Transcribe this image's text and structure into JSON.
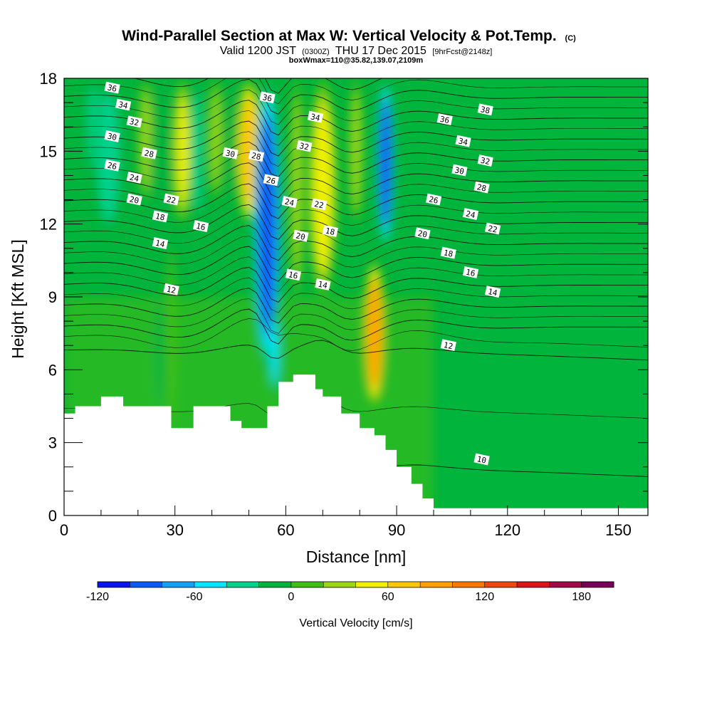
{
  "title": {
    "main": "Wind-Parallel Section at Max W: Vertical Velocity & Pot.Temp.",
    "main_suffix": "(C)",
    "valid_prefix": "Valid 1200 JST",
    "valid_z": "(0300Z)",
    "valid_date": "THU 17 Dec 2015",
    "valid_fcst": "[9hrFcst@2148z]",
    "box": "boxWmax=110@35.82,139.07,2109m"
  },
  "chart_data": {
    "type": "heatmap",
    "xlabel": "Distance [nm]",
    "ylabel": "Height [Kft MSL]",
    "xlim": [
      0,
      158
    ],
    "ylim": [
      0,
      18
    ],
    "x_ticks": [
      0,
      30,
      60,
      90,
      120,
      150
    ],
    "y_ticks": [
      0,
      3,
      6,
      9,
      12,
      15,
      18
    ],
    "colorbar": {
      "title": "Vertical Velocity [cm/s]",
      "min": -120,
      "max": 200,
      "step": 20,
      "tick_values": [
        -120,
        -60,
        0,
        60,
        120,
        180
      ],
      "tick_labels": [
        "-120",
        "-60",
        "0",
        "60",
        "120",
        "180"
      ],
      "colors": [
        "#0a14f0",
        "#0a5af5",
        "#14a0f5",
        "#00e6ff",
        "#00d28c",
        "#00b43c",
        "#41be14",
        "#9bd714",
        "#f0f000",
        "#ffc800",
        "#ffa000",
        "#ff7800",
        "#f04614",
        "#dc1414",
        "#a00a46",
        "#78005a"
      ]
    },
    "vertical_velocity_features": [
      {
        "x": 3,
        "w": 4,
        "y0": 13,
        "y1": 18,
        "value": -30
      },
      {
        "x": 8,
        "w": 3,
        "y0": 14,
        "y1": 18,
        "value": -50
      },
      {
        "x": 12,
        "w": 7,
        "y0": 11.5,
        "y1": 18,
        "value": -40
      },
      {
        "x": 22,
        "w": 3,
        "y0": 13,
        "y1": 18,
        "value": 50
      },
      {
        "x": 26,
        "w": 5,
        "y0": 11,
        "y1": 18,
        "value": -30
      },
      {
        "x": 32,
        "w": 4,
        "y0": 12,
        "y1": 18,
        "value": 60
      },
      {
        "x": 36,
        "w": 3,
        "y0": 12,
        "y1": 18,
        "value": -40
      },
      {
        "x": 41,
        "w": 3,
        "y0": 13,
        "y1": 18,
        "value": 40
      },
      {
        "x": 45,
        "w": 2,
        "y0": 13,
        "y1": 18,
        "value": -30
      },
      {
        "x": 50,
        "w": 6,
        "y0": 12,
        "y1": 18,
        "value": 80
      },
      {
        "x": 55,
        "w": 7,
        "y0": 6,
        "y1": 18,
        "value": -100
      },
      {
        "x": 57,
        "w": 2,
        "y0": 5,
        "y1": 8.5,
        "value": -60
      },
      {
        "x": 63,
        "w": 3,
        "y0": 9,
        "y1": 18,
        "value": 40
      },
      {
        "x": 70,
        "w": 7,
        "y0": 9,
        "y1": 18,
        "value": 70
      },
      {
        "x": 79,
        "w": 3,
        "y0": 12,
        "y1": 18,
        "value": 40
      },
      {
        "x": 87,
        "w": 4,
        "y0": 11,
        "y1": 18,
        "value": -100
      },
      {
        "x": 84,
        "w": 5,
        "y0": 4.5,
        "y1": 10.5,
        "value": 110
      },
      {
        "x": 29,
        "w": 2,
        "y0": 3.6,
        "y1": 11,
        "value": 30
      },
      {
        "x": 26,
        "w": 2,
        "y0": 4.5,
        "y1": 9,
        "value": -20
      }
    ],
    "potential_temperature_labels": [
      {
        "value": 36,
        "x": 13,
        "y": 17.6
      },
      {
        "value": 34,
        "x": 16,
        "y": 16.9
      },
      {
        "value": 32,
        "x": 19,
        "y": 16.2
      },
      {
        "value": 30,
        "x": 13,
        "y": 15.6
      },
      {
        "value": 28,
        "x": 23,
        "y": 14.9
      },
      {
        "value": 26,
        "x": 13,
        "y": 14.4
      },
      {
        "value": 24,
        "x": 19,
        "y": 13.9
      },
      {
        "value": 22,
        "x": 29,
        "y": 13.0
      },
      {
        "value": 20,
        "x": 19,
        "y": 13.0
      },
      {
        "value": 18,
        "x": 26,
        "y": 12.3
      },
      {
        "value": 16,
        "x": 37,
        "y": 11.9
      },
      {
        "value": 14,
        "x": 26,
        "y": 11.2
      },
      {
        "value": 12,
        "x": 29,
        "y": 9.3
      },
      {
        "value": 36,
        "x": 55,
        "y": 17.2
      },
      {
        "value": 30,
        "x": 45,
        "y": 14.9
      },
      {
        "value": 28,
        "x": 52,
        "y": 14.8
      },
      {
        "value": 26,
        "x": 56,
        "y": 13.8
      },
      {
        "value": 34,
        "x": 68,
        "y": 16.4
      },
      {
        "value": 32,
        "x": 65,
        "y": 15.2
      },
      {
        "value": 24,
        "x": 61,
        "y": 12.9
      },
      {
        "value": 22,
        "x": 69,
        "y": 12.8
      },
      {
        "value": 20,
        "x": 64,
        "y": 11.5
      },
      {
        "value": 18,
        "x": 72,
        "y": 11.7
      },
      {
        "value": 16,
        "x": 62,
        "y": 9.9
      },
      {
        "value": 14,
        "x": 70,
        "y": 9.5
      },
      {
        "value": 36,
        "x": 103,
        "y": 16.3
      },
      {
        "value": 38,
        "x": 114,
        "y": 16.7
      },
      {
        "value": 34,
        "x": 108,
        "y": 15.4
      },
      {
        "value": 32,
        "x": 114,
        "y": 14.6
      },
      {
        "value": 30,
        "x": 107,
        "y": 14.2
      },
      {
        "value": 28,
        "x": 113,
        "y": 13.5
      },
      {
        "value": 26,
        "x": 100,
        "y": 13.0
      },
      {
        "value": 24,
        "x": 110,
        "y": 12.4
      },
      {
        "value": 22,
        "x": 116,
        "y": 11.8
      },
      {
        "value": 20,
        "x": 97,
        "y": 11.6
      },
      {
        "value": 18,
        "x": 104,
        "y": 10.8
      },
      {
        "value": 16,
        "x": 110,
        "y": 10.0
      },
      {
        "value": 14,
        "x": 116,
        "y": 9.2
      },
      {
        "value": 12,
        "x": 104,
        "y": 7.0
      },
      {
        "value": 10,
        "x": 113,
        "y": 2.3
      }
    ],
    "terrain": [
      [
        0,
        4.2
      ],
      [
        3,
        4.5
      ],
      [
        10,
        4.9
      ],
      [
        16,
        4.5
      ],
      [
        29,
        3.6
      ],
      [
        35,
        4.5
      ],
      [
        45,
        3.9
      ],
      [
        48,
        3.6
      ],
      [
        55,
        4.5
      ],
      [
        58,
        5.5
      ],
      [
        62,
        5.8
      ],
      [
        68,
        5.2
      ],
      [
        70,
        4.9
      ],
      [
        75,
        4.2
      ],
      [
        80,
        3.6
      ],
      [
        84,
        3.3
      ],
      [
        87,
        2.7
      ],
      [
        90,
        2.0
      ],
      [
        94,
        1.3
      ],
      [
        97,
        0.7
      ],
      [
        100,
        0.3
      ],
      [
        158,
        0.3
      ]
    ]
  }
}
